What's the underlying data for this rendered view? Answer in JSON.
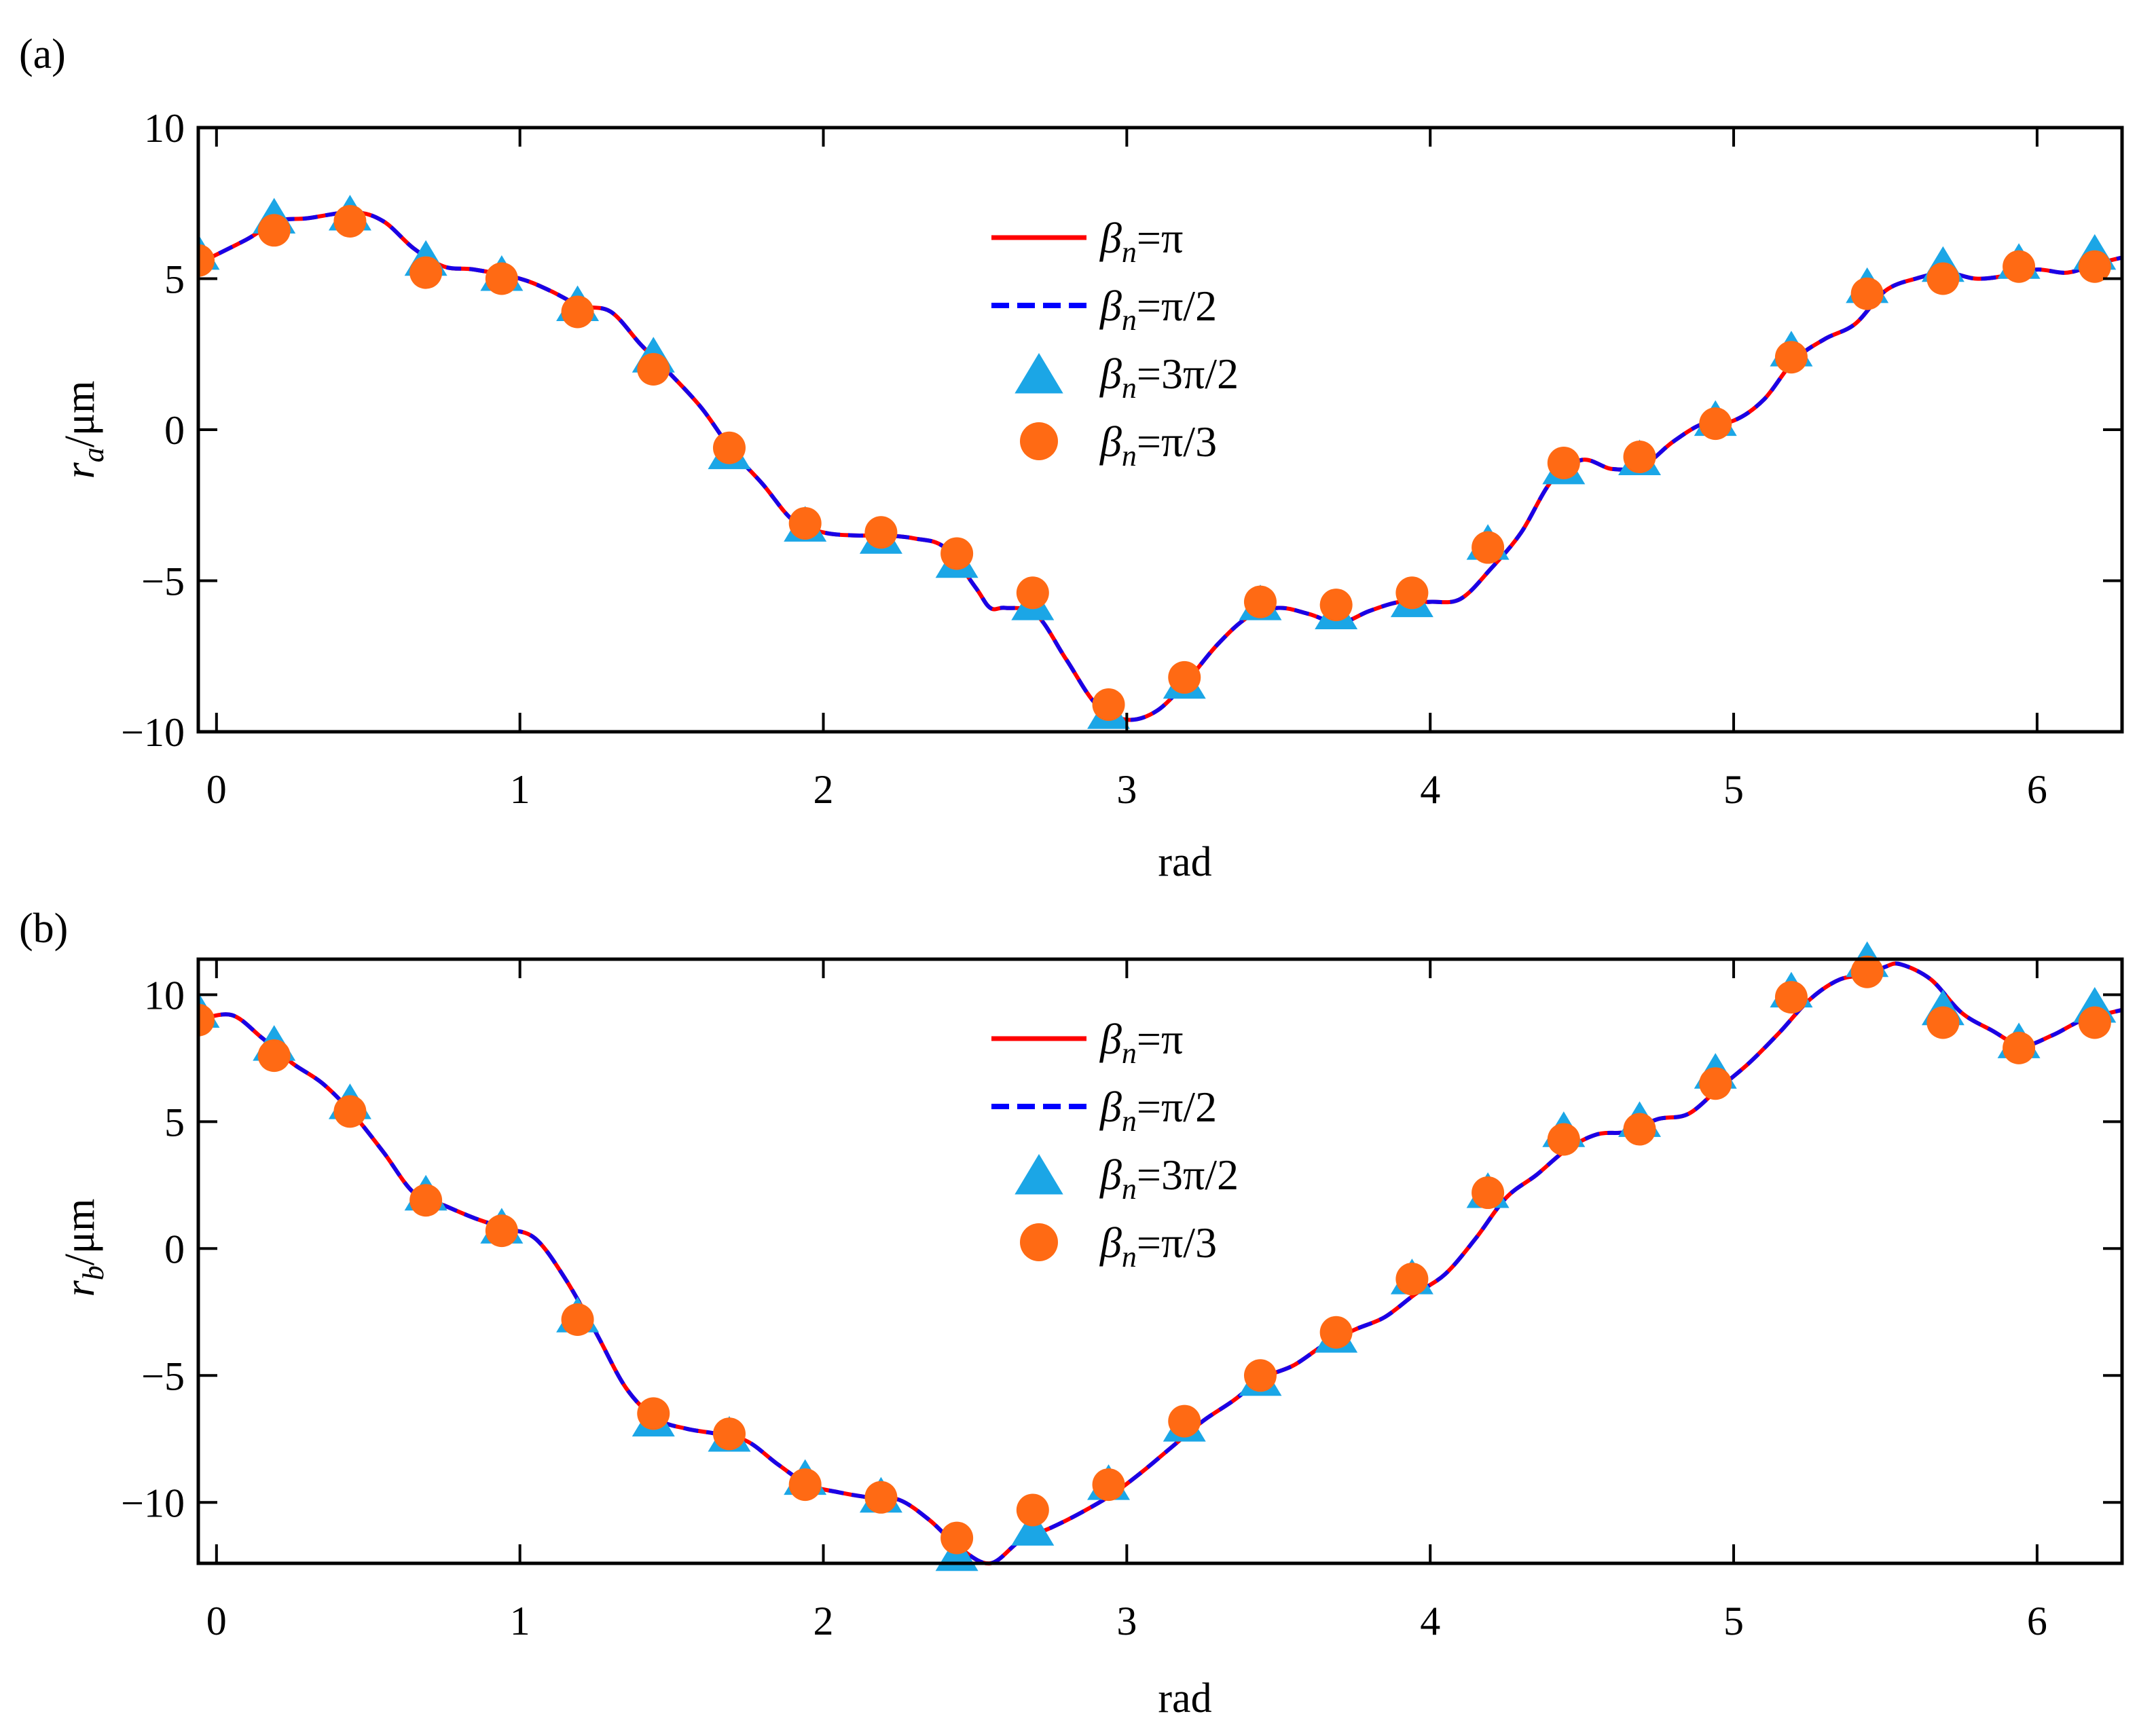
{
  "colors": {
    "pi": "#ff0000",
    "pi_over_2": "#0000ff",
    "three_pi_over_2": "#1ba6e6",
    "pi_over_3": "#ff6a14",
    "axis": "#000000",
    "background": "#ffffff"
  },
  "chart_data": [
    {
      "type": "line",
      "panel_label": "(a)",
      "xlabel": "rad",
      "ylabel_symbol": "r",
      "ylabel_subscript": "a",
      "ylabel_unit": "/μm",
      "xlim": [
        -0.06,
        6.28
      ],
      "ylim": [
        -10,
        10
      ],
      "xticks": [
        0,
        1,
        2,
        3,
        4,
        5,
        6
      ],
      "xtick_labels": [
        "0",
        "1",
        "2",
        "3",
        "4",
        "5",
        "6"
      ],
      "yticks": [
        -10,
        -5,
        0,
        5,
        10
      ],
      "ytick_labels": [
        "−10",
        "−5",
        "0",
        "5",
        "10"
      ],
      "grid": false,
      "legend_position": "center-top",
      "legend": [
        {
          "symbol": "β",
          "sub": "n",
          "value": "=π",
          "style": "solid-line",
          "series": "pi"
        },
        {
          "symbol": "β",
          "sub": "n",
          "value": "=π/2",
          "style": "dashed-line",
          "series": "pi_over_2"
        },
        {
          "symbol": "β",
          "sub": "n",
          "value": "=3π/2",
          "style": "triangle",
          "series": "three_pi_over_2"
        },
        {
          "symbol": "β",
          "sub": "n",
          "value": "=π/3",
          "style": "circle",
          "series": "pi_over_3"
        }
      ],
      "curve": {
        "x": [
          -0.06,
          0.1,
          0.2,
          0.3,
          0.45,
          0.55,
          0.65,
          0.75,
          0.85,
          1.0,
          1.1,
          1.2,
          1.3,
          1.4,
          1.5,
          1.6,
          1.7,
          1.8,
          1.9,
          2.0,
          2.1,
          2.2,
          2.3,
          2.4,
          2.5,
          2.55,
          2.6,
          2.7,
          2.8,
          2.9,
          3.0,
          3.1,
          3.2,
          3.3,
          3.4,
          3.5,
          3.6,
          3.7,
          3.8,
          3.9,
          4.0,
          4.1,
          4.2,
          4.3,
          4.4,
          4.5,
          4.6,
          4.7,
          4.8,
          4.9,
          5.0,
          5.1,
          5.2,
          5.3,
          5.4,
          5.5,
          5.6,
          5.7,
          5.8,
          5.9,
          6.0,
          6.1,
          6.2,
          6.28
        ],
        "y": [
          5.5,
          6.3,
          6.9,
          7.0,
          7.2,
          6.9,
          6.0,
          5.4,
          5.3,
          5.0,
          4.6,
          4.1,
          3.9,
          2.8,
          1.8,
          0.7,
          -0.7,
          -1.8,
          -3.0,
          -3.4,
          -3.5,
          -3.5,
          -3.6,
          -3.9,
          -5.2,
          -5.9,
          -5.9,
          -6.1,
          -7.6,
          -9.1,
          -9.6,
          -9.3,
          -8.3,
          -7.1,
          -6.2,
          -5.9,
          -6.1,
          -6.4,
          -6.0,
          -5.7,
          -5.7,
          -5.6,
          -4.6,
          -3.4,
          -1.7,
          -1.0,
          -1.3,
          -1.2,
          -0.4,
          0.2,
          0.3,
          1.0,
          2.3,
          3.0,
          3.5,
          4.6,
          5.0,
          5.2,
          5.0,
          5.1,
          5.3,
          5.2,
          5.5,
          5.7
        ]
      },
      "markers_x": [
        -0.06,
        0.19,
        0.44,
        0.69,
        0.94,
        1.19,
        1.44,
        1.69,
        1.94,
        2.19,
        2.44,
        2.69,
        2.94,
        3.19,
        3.44,
        3.69,
        3.94,
        4.19,
        4.44,
        4.69,
        4.94,
        5.19,
        5.44,
        5.69,
        5.94,
        6.19
      ],
      "series": [
        {
          "key": "three_pi_over_2",
          "marker": "triangle",
          "values": [
            5.8,
            7.0,
            7.1,
            5.6,
            5.1,
            4.1,
            2.4,
            -0.8,
            -3.2,
            -3.6,
            -4.4,
            -5.8,
            -9.4,
            -8.4,
            -5.8,
            -6.1,
            -5.7,
            -3.8,
            -1.3,
            -1.0,
            0.3,
            2.6,
            4.7,
            5.4,
            5.5,
            5.8
          ]
        },
        {
          "key": "pi_over_3",
          "marker": "circle",
          "values": [
            5.6,
            6.6,
            6.9,
            5.2,
            5.0,
            3.9,
            2.0,
            -0.6,
            -3.1,
            -3.4,
            -4.1,
            -5.4,
            -9.1,
            -8.2,
            -5.7,
            -5.8,
            -5.4,
            -3.9,
            -1.1,
            -0.9,
            0.2,
            2.4,
            4.5,
            5.0,
            5.4,
            5.4
          ]
        }
      ]
    },
    {
      "type": "line",
      "panel_label": "(b)",
      "xlabel": "rad",
      "ylabel_symbol": "r",
      "ylabel_subscript": "b",
      "ylabel_unit": "/μm",
      "xlim": [
        -0.06,
        6.28
      ],
      "ylim": [
        -12.4,
        11.4
      ],
      "xticks": [
        0,
        1,
        2,
        3,
        4,
        5,
        6
      ],
      "xtick_labels": [
        "0",
        "1",
        "2",
        "3",
        "4",
        "5",
        "6"
      ],
      "yticks": [
        -10,
        -5,
        0,
        5,
        10
      ],
      "ytick_labels": [
        "−10",
        "−5",
        "0",
        "5",
        "10"
      ],
      "grid": false,
      "legend_position": "center-top",
      "legend": [
        {
          "symbol": "β",
          "sub": "n",
          "value": "=π",
          "style": "solid-line",
          "series": "pi"
        },
        {
          "symbol": "β",
          "sub": "n",
          "value": "=π/2",
          "style": "dashed-line",
          "series": "pi_over_2"
        },
        {
          "symbol": "β",
          "sub": "n",
          "value": "=3π/2",
          "style": "triangle",
          "series": "three_pi_over_2"
        },
        {
          "symbol": "β",
          "sub": "n",
          "value": "=π/3",
          "style": "circle",
          "series": "pi_over_3"
        }
      ],
      "curve": {
        "x": [
          -0.06,
          0.05,
          0.15,
          0.25,
          0.35,
          0.45,
          0.55,
          0.65,
          0.75,
          0.85,
          0.95,
          1.05,
          1.15,
          1.25,
          1.35,
          1.45,
          1.55,
          1.65,
          1.75,
          1.85,
          1.95,
          2.05,
          2.15,
          2.25,
          2.35,
          2.45,
          2.55,
          2.65,
          2.75,
          2.85,
          2.95,
          3.05,
          3.15,
          3.25,
          3.35,
          3.45,
          3.55,
          3.65,
          3.75,
          3.85,
          3.95,
          4.05,
          4.15,
          4.25,
          4.35,
          4.45,
          4.55,
          4.65,
          4.75,
          4.85,
          4.95,
          5.05,
          5.15,
          5.25,
          5.35,
          5.45,
          5.5,
          5.55,
          5.65,
          5.75,
          5.85,
          5.95,
          6.05,
          6.15,
          6.28
        ],
        "y": [
          9.0,
          9.2,
          8.3,
          7.3,
          6.5,
          5.3,
          3.8,
          2.2,
          1.7,
          1.2,
          0.8,
          0.4,
          -1.2,
          -3.3,
          -5.5,
          -6.7,
          -7.1,
          -7.3,
          -7.6,
          -8.5,
          -9.3,
          -9.6,
          -9.8,
          -9.9,
          -10.7,
          -11.8,
          -12.4,
          -11.5,
          -11.0,
          -10.4,
          -9.7,
          -8.8,
          -7.8,
          -6.8,
          -6.0,
          -5.1,
          -4.6,
          -3.8,
          -3.2,
          -2.7,
          -1.8,
          -1.0,
          0.4,
          2.0,
          2.9,
          3.9,
          4.5,
          4.6,
          5.1,
          5.3,
          6.3,
          7.3,
          8.5,
          9.8,
          10.6,
          10.8,
          11.1,
          11.2,
          10.6,
          9.3,
          8.6,
          8.0,
          8.4,
          9.0,
          9.4
        ]
      },
      "markers_x": [
        -0.06,
        0.19,
        0.44,
        0.69,
        0.94,
        1.19,
        1.44,
        1.69,
        1.94,
        2.19,
        2.44,
        2.69,
        2.94,
        3.19,
        3.44,
        3.69,
        3.94,
        4.19,
        4.44,
        4.69,
        4.94,
        5.19,
        5.44,
        5.69,
        5.94,
        6.19
      ],
      "series": [
        {
          "key": "three_pi_over_2",
          "marker": "triangle",
          "values": [
            9.3,
            8.0,
            5.7,
            2.1,
            0.8,
            -2.7,
            -6.8,
            -7.4,
            -9.1,
            -9.8,
            -12.1,
            -11.1,
            -9.3,
            -7.0,
            -5.2,
            -3.5,
            -1.2,
            2.2,
            4.6,
            5.0,
            6.9,
            10.1,
            11.3,
            9.4,
            8.1,
            9.5
          ]
        },
        {
          "key": "pi_over_3",
          "marker": "circle",
          "values": [
            9.0,
            7.6,
            5.4,
            1.9,
            0.7,
            -2.8,
            -6.5,
            -7.3,
            -9.3,
            -9.8,
            -11.4,
            -10.3,
            -9.3,
            -6.8,
            -5.0,
            -3.3,
            -1.2,
            2.2,
            4.3,
            4.7,
            6.5,
            9.9,
            10.9,
            8.9,
            7.9,
            8.9
          ]
        }
      ]
    }
  ]
}
